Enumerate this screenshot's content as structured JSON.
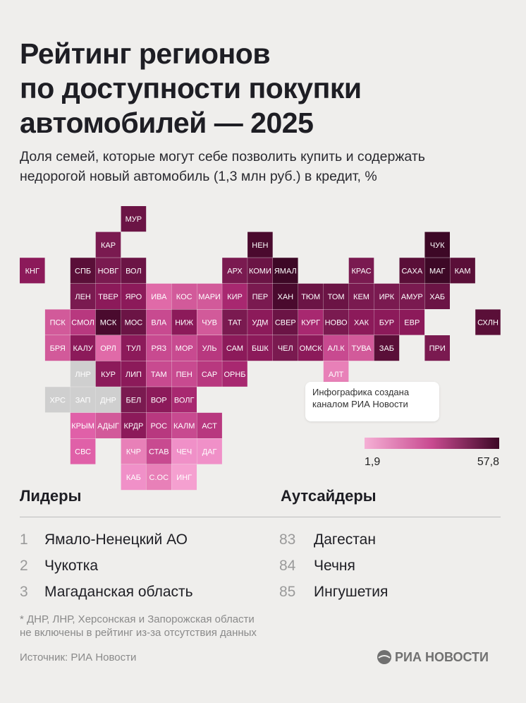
{
  "header": {
    "title": [
      "Рейтинг регионов",
      "по доступности покупки",
      "автомобилей — 2025"
    ],
    "subtitle": [
      "Доля семей, которые могут себе позволить купить и содержать",
      "недорогой новый автомобиль (1,3 млн руб.) в кредит, %"
    ]
  },
  "map": {
    "tiles": [
      {
        "label": "МУР",
        "row": 0,
        "col": 4,
        "color": "#6b1445"
      },
      {
        "label": "КАР",
        "row": 1,
        "col": 3,
        "color": "#7a1a50"
      },
      {
        "label": "НЕН",
        "row": 1,
        "col": 9,
        "color": "#4a0a2e"
      },
      {
        "label": "ЧУК",
        "row": 1,
        "col": 16,
        "color": "#3d0826"
      },
      {
        "label": "КНГ",
        "row": 2,
        "col": 0,
        "color": "#8c1a5a"
      },
      {
        "label": "СПБ",
        "row": 2,
        "col": 2,
        "color": "#5a0f38"
      },
      {
        "label": "НОВГ",
        "row": 2,
        "col": 3,
        "color": "#7a1a50"
      },
      {
        "label": "ВОЛ",
        "row": 2,
        "col": 4,
        "color": "#6b1445"
      },
      {
        "label": "АРХ",
        "row": 2,
        "col": 8,
        "color": "#7a1a50"
      },
      {
        "label": "КОМИ",
        "row": 2,
        "col": 9,
        "color": "#6b1445"
      },
      {
        "label": "ЯМАЛ",
        "row": 2,
        "col": 10,
        "color": "#3d0826"
      },
      {
        "label": "КРАС",
        "row": 2,
        "col": 13,
        "color": "#7a1a50"
      },
      {
        "label": "САХА",
        "row": 2,
        "col": 15,
        "color": "#5a0f38"
      },
      {
        "label": "МАГ",
        "row": 2,
        "col": 16,
        "color": "#3d0826"
      },
      {
        "label": "КАМ",
        "row": 2,
        "col": 17,
        "color": "#5a0f38"
      },
      {
        "label": "ЛЕН",
        "row": 3,
        "col": 2,
        "color": "#7a1a50"
      },
      {
        "label": "ТВЕР",
        "row": 3,
        "col": 3,
        "color": "#8c1a5a"
      },
      {
        "label": "ЯРО",
        "row": 3,
        "col": 4,
        "color": "#8c1a5a"
      },
      {
        "label": "ИВА",
        "row": 3,
        "col": 5,
        "color": "#e06aa8"
      },
      {
        "label": "КОС",
        "row": 3,
        "col": 6,
        "color": "#d25a9a"
      },
      {
        "label": "МАРИ",
        "row": 3,
        "col": 7,
        "color": "#d25a9a"
      },
      {
        "label": "КИР",
        "row": 3,
        "col": 8,
        "color": "#a82870"
      },
      {
        "label": "ПЕР",
        "row": 3,
        "col": 9,
        "color": "#7a1a50"
      },
      {
        "label": "ХАН",
        "row": 3,
        "col": 10,
        "color": "#4a0a2e"
      },
      {
        "label": "ТЮМ",
        "row": 3,
        "col": 11,
        "color": "#6b1445"
      },
      {
        "label": "ТОМ",
        "row": 3,
        "col": 12,
        "color": "#6b1445"
      },
      {
        "label": "КЕМ",
        "row": 3,
        "col": 13,
        "color": "#7a1a50"
      },
      {
        "label": "ИРК",
        "row": 3,
        "col": 14,
        "color": "#7a1a50"
      },
      {
        "label": "АМУР",
        "row": 3,
        "col": 15,
        "color": "#7a1a50"
      },
      {
        "label": "ХАБ",
        "row": 3,
        "col": 16,
        "color": "#6b1445"
      },
      {
        "label": "ПСК",
        "row": 4,
        "col": 1,
        "color": "#d25a9a"
      },
      {
        "label": "СМОЛ",
        "row": 4,
        "col": 2,
        "color": "#b8387f"
      },
      {
        "label": "МСК",
        "row": 4,
        "col": 3,
        "color": "#4a0a2e"
      },
      {
        "label": "МОС",
        "row": 4,
        "col": 4,
        "color": "#6b1445"
      },
      {
        "label": "ВЛА",
        "row": 4,
        "col": 5,
        "color": "#c84a90"
      },
      {
        "label": "НИЖ",
        "row": 4,
        "col": 6,
        "color": "#8c1a5a"
      },
      {
        "label": "ЧУВ",
        "row": 4,
        "col": 7,
        "color": "#d25a9a"
      },
      {
        "label": "ТАТ",
        "row": 4,
        "col": 8,
        "color": "#7a1a50"
      },
      {
        "label": "УДМ",
        "row": 4,
        "col": 9,
        "color": "#8c1a5a"
      },
      {
        "label": "СВЕР",
        "row": 4,
        "col": 10,
        "color": "#6b1445"
      },
      {
        "label": "КУРГ",
        "row": 4,
        "col": 11,
        "color": "#a82870"
      },
      {
        "label": "НОВО",
        "row": 4,
        "col": 12,
        "color": "#7a1a50"
      },
      {
        "label": "ХАК",
        "row": 4,
        "col": 13,
        "color": "#8c1a5a"
      },
      {
        "label": "БУР",
        "row": 4,
        "col": 14,
        "color": "#8c1a5a"
      },
      {
        "label": "ЕВР",
        "row": 4,
        "col": 15,
        "color": "#8c1a5a"
      },
      {
        "label": "СХЛН",
        "row": 4,
        "col": 18,
        "color": "#5a0f38"
      },
      {
        "label": "БРЯ",
        "row": 5,
        "col": 1,
        "color": "#d25a9a"
      },
      {
        "label": "КАЛУ",
        "row": 5,
        "col": 2,
        "color": "#8c1a5a"
      },
      {
        "label": "ОРЛ",
        "row": 5,
        "col": 3,
        "color": "#e06aa8"
      },
      {
        "label": "ТУЛ",
        "row": 5,
        "col": 4,
        "color": "#8c1a5a"
      },
      {
        "label": "РЯЗ",
        "row": 5,
        "col": 5,
        "color": "#c84a90"
      },
      {
        "label": "МОР",
        "row": 5,
        "col": 6,
        "color": "#c84a90"
      },
      {
        "label": "УЛЬ",
        "row": 5,
        "col": 7,
        "color": "#b8387f"
      },
      {
        "label": "САМ",
        "row": 5,
        "col": 8,
        "color": "#8c1a5a"
      },
      {
        "label": "БШК",
        "row": 5,
        "col": 9,
        "color": "#8c1a5a"
      },
      {
        "label": "ЧЕЛ",
        "row": 5,
        "col": 10,
        "color": "#7a1a50"
      },
      {
        "label": "ОМСК",
        "row": 5,
        "col": 11,
        "color": "#8c1a5a"
      },
      {
        "label": "АЛ.К",
        "row": 5,
        "col": 12,
        "color": "#c84a90"
      },
      {
        "label": "ТУВА",
        "row": 5,
        "col": 13,
        "color": "#d25a9a"
      },
      {
        "label": "ЗАБ",
        "row": 5,
        "col": 14,
        "color": "#5a0f38"
      },
      {
        "label": "ПРИ",
        "row": 5,
        "col": 16,
        "color": "#7a1a50"
      },
      {
        "label": "ЛНР",
        "row": 6,
        "col": 2,
        "color": "#cfcfcf"
      },
      {
        "label": "КУР",
        "row": 6,
        "col": 3,
        "color": "#8c1a5a"
      },
      {
        "label": "ЛИП",
        "row": 6,
        "col": 4,
        "color": "#8c1a5a"
      },
      {
        "label": "ТАМ",
        "row": 6,
        "col": 5,
        "color": "#c84a90"
      },
      {
        "label": "ПЕН",
        "row": 6,
        "col": 6,
        "color": "#c84a90"
      },
      {
        "label": "САР",
        "row": 6,
        "col": 7,
        "color": "#b8387f"
      },
      {
        "label": "ОРНБ",
        "row": 6,
        "col": 8,
        "color": "#a82870"
      },
      {
        "label": "АЛТ",
        "row": 6,
        "col": 12,
        "color": "#e880b8"
      },
      {
        "label": "ХРС",
        "row": 7,
        "col": 1,
        "color": "#cfcfcf"
      },
      {
        "label": "ЗАП",
        "row": 7,
        "col": 2,
        "color": "#cfcfcf"
      },
      {
        "label": "ДНР",
        "row": 7,
        "col": 3,
        "color": "#cfcfcf"
      },
      {
        "label": "БЕЛ",
        "row": 7,
        "col": 4,
        "color": "#7a1a50"
      },
      {
        "label": "ВОР",
        "row": 7,
        "col": 5,
        "color": "#8c1a5a"
      },
      {
        "label": "ВОЛГ",
        "row": 7,
        "col": 6,
        "color": "#a82870"
      },
      {
        "label": "КРЫМ",
        "row": 8,
        "col": 2,
        "color": "#e060a8"
      },
      {
        "label": "АДЫГ",
        "row": 8,
        "col": 3,
        "color": "#d25a9a"
      },
      {
        "label": "КРДР",
        "row": 8,
        "col": 4,
        "color": "#8c1a5a"
      },
      {
        "label": "РОС",
        "row": 8,
        "col": 5,
        "color": "#b8387f"
      },
      {
        "label": "КАЛМ",
        "row": 8,
        "col": 6,
        "color": "#c84a90"
      },
      {
        "label": "АСТ",
        "row": 8,
        "col": 7,
        "color": "#b8387f"
      },
      {
        "label": "СВС",
        "row": 9,
        "col": 2,
        "color": "#e060a8"
      },
      {
        "label": "КЧР",
        "row": 9,
        "col": 4,
        "color": "#e880b8"
      },
      {
        "label": "СТАВ",
        "row": 9,
        "col": 5,
        "color": "#c84a90"
      },
      {
        "label": "ЧЕЧ",
        "row": 9,
        "col": 6,
        "color": "#f090c8"
      },
      {
        "label": "ДАГ",
        "row": 9,
        "col": 7,
        "color": "#f090c8"
      },
      {
        "label": "КАБ",
        "row": 10,
        "col": 4,
        "color": "#f090c8"
      },
      {
        "label": "С.ОС",
        "row": 10,
        "col": 5,
        "color": "#e880b8"
      },
      {
        "label": "ИНГ",
        "row": 10,
        "col": 6,
        "color": "#f5a0d0"
      }
    ],
    "note": [
      "Инфографика создана",
      "каналом РИА Новости"
    ],
    "legend": {
      "min_label": "1,9",
      "max_label": "57,8",
      "colors": [
        "#f5b0d5",
        "#c84a90",
        "#3d0826"
      ]
    }
  },
  "leaders": {
    "heading": "Лидеры",
    "items": [
      {
        "rank": "1",
        "name": "Ямало-Ненецкий АО"
      },
      {
        "rank": "2",
        "name": "Чукотка"
      },
      {
        "rank": "3",
        "name": "Магаданская область"
      }
    ]
  },
  "outsiders": {
    "heading": "Аутсайдеры",
    "items": [
      {
        "rank": "83",
        "name": "Дагестан"
      },
      {
        "rank": "84",
        "name": "Чечня"
      },
      {
        "rank": "85",
        "name": "Ингушетия"
      }
    ]
  },
  "footer": {
    "footnote": [
      "* ДНР, ЛНР, Херсонская и Запорожская области",
      "не включены в рейтинг из-за отсутствия данных"
    ],
    "source": "Источник: РИА Новости",
    "logo": "РИА НОВОСТИ"
  }
}
